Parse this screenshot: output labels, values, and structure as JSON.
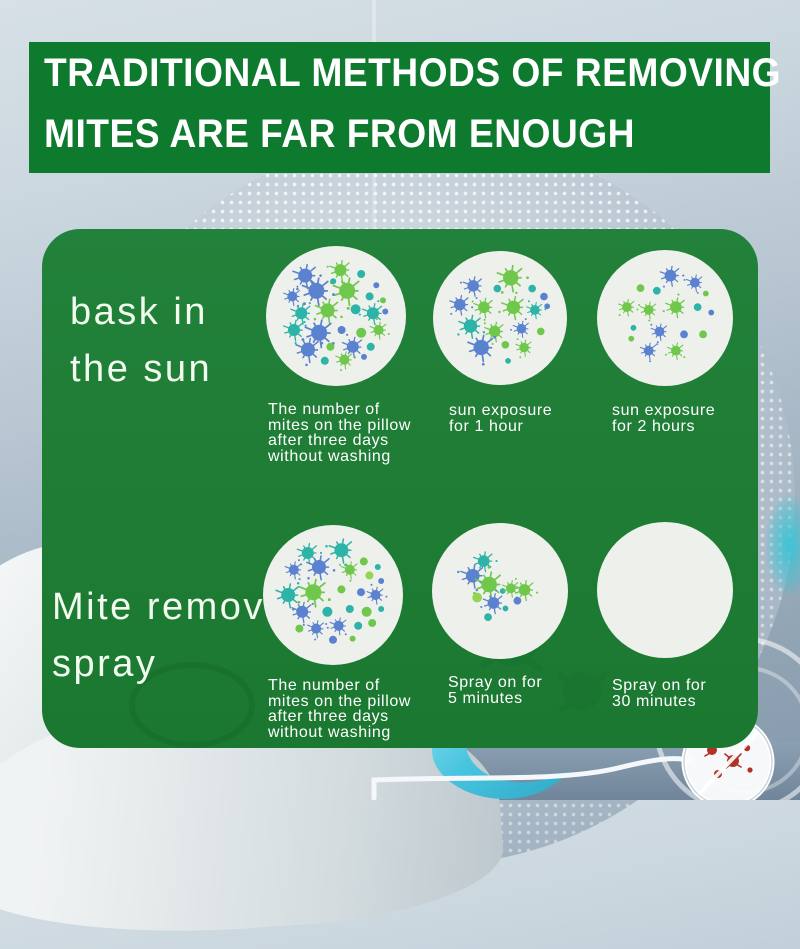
{
  "banner": {
    "line1": "TRADITIONAL METHODS OF REMOVING",
    "line2": "MITES ARE FAR FROM ENOUGH"
  },
  "colors": {
    "banner_bg": "#0d7a2e",
    "panel_bg_top": "#22813a",
    "panel_bg_bottom": "#1b7830",
    "headline_text": "#ffffff",
    "label_text": "#f1fbee",
    "caption_text": "#ffffff",
    "dish_fill": "#eef0ec",
    "red_mite": "#b03228",
    "ribbon_cyan": "#45c3de",
    "mites": {
      "b": "#5b82cf",
      "g": "#6fc84c",
      "t": "#2db3a8",
      "l": "#93d455"
    }
  },
  "rows": [
    {
      "label_lines": [
        "bask in",
        "the sun"
      ],
      "items": [
        {
          "caption_lines": [
            "The number of",
            "mites on the pillow",
            "after three days",
            "without washing"
          ],
          "mite_count": 27,
          "mites": [
            [
              -0.55,
              -0.72,
              7,
              "b",
              1
            ],
            [
              0.08,
              -0.82,
              6,
              "g",
              1
            ],
            [
              0.45,
              -0.75,
              4,
              "t",
              0
            ],
            [
              0.72,
              -0.55,
              3,
              "b",
              0
            ],
            [
              -0.78,
              -0.35,
              5,
              "b",
              1
            ],
            [
              -0.35,
              -0.45,
              8,
              "b",
              1
            ],
            [
              0.2,
              -0.45,
              8,
              "g",
              1
            ],
            [
              0.6,
              -0.35,
              4,
              "t",
              0
            ],
            [
              0.84,
              -0.28,
              3,
              "g",
              0
            ],
            [
              -0.62,
              -0.05,
              6,
              "t",
              1
            ],
            [
              -0.15,
              -0.1,
              7,
              "g",
              1
            ],
            [
              0.35,
              -0.12,
              5,
              "t",
              0
            ],
            [
              0.66,
              -0.05,
              6,
              "t",
              1
            ],
            [
              0.88,
              -0.08,
              3,
              "b",
              0
            ],
            [
              -0.75,
              0.25,
              6,
              "t",
              1
            ],
            [
              -0.3,
              0.3,
              8,
              "b",
              1
            ],
            [
              0.1,
              0.25,
              4,
              "b",
              0
            ],
            [
              0.45,
              0.3,
              5,
              "g",
              0
            ],
            [
              0.76,
              0.25,
              5,
              "g",
              1
            ],
            [
              -0.5,
              0.6,
              7,
              "b",
              1
            ],
            [
              -0.1,
              0.55,
              4,
              "g",
              0
            ],
            [
              0.3,
              0.55,
              6,
              "b",
              1
            ],
            [
              0.62,
              0.55,
              4,
              "t",
              0
            ],
            [
              -0.2,
              0.8,
              4,
              "t",
              0
            ],
            [
              0.15,
              0.78,
              5,
              "g",
              1
            ],
            [
              0.5,
              0.73,
              3,
              "b",
              0
            ],
            [
              -0.05,
              -0.62,
              3,
              "t",
              0
            ]
          ]
        },
        {
          "caption_lines": [
            "sun exposure",
            "for 1 hour"
          ],
          "mite_count": 18,
          "mites": [
            [
              0.2,
              -0.75,
              8,
              "g",
              1
            ],
            [
              -0.5,
              -0.6,
              6,
              "b",
              1
            ],
            [
              -0.05,
              -0.55,
              4,
              "t",
              0
            ],
            [
              0.6,
              -0.55,
              4,
              "t",
              0
            ],
            [
              0.82,
              -0.4,
              4,
              "b",
              0
            ],
            [
              -0.75,
              -0.25,
              6,
              "b",
              1
            ],
            [
              -0.3,
              -0.2,
              6,
              "g",
              1
            ],
            [
              0.25,
              -0.2,
              7,
              "g",
              1
            ],
            [
              0.65,
              -0.15,
              5,
              "t",
              1
            ],
            [
              0.88,
              -0.22,
              3,
              "b",
              0
            ],
            [
              -0.55,
              0.15,
              7,
              "t",
              1
            ],
            [
              -0.1,
              0.25,
              6,
              "g",
              1
            ],
            [
              0.4,
              0.2,
              5,
              "b",
              1
            ],
            [
              0.76,
              0.25,
              4,
              "g",
              0
            ],
            [
              -0.35,
              0.55,
              8,
              "b",
              1
            ],
            [
              0.1,
              0.5,
              4,
              "g",
              0
            ],
            [
              0.45,
              0.55,
              5,
              "g",
              1
            ],
            [
              0.15,
              0.8,
              3,
              "t",
              0
            ]
          ]
        },
        {
          "caption_lines": [
            "sun exposure",
            "for 2 hours"
          ],
          "mite_count": 17,
          "mites": [
            [
              0.1,
              -0.78,
              6,
              "b",
              1
            ],
            [
              0.55,
              -0.65,
              5,
              "b",
              1
            ],
            [
              -0.45,
              -0.55,
              4,
              "g",
              0
            ],
            [
              -0.15,
              -0.5,
              4,
              "t",
              0
            ],
            [
              0.75,
              -0.45,
              3,
              "g",
              0
            ],
            [
              -0.7,
              -0.2,
              5,
              "g",
              1
            ],
            [
              -0.3,
              -0.15,
              5,
              "g",
              1
            ],
            [
              0.2,
              -0.2,
              6,
              "g",
              1
            ],
            [
              0.6,
              -0.2,
              4,
              "t",
              0
            ],
            [
              0.85,
              -0.1,
              3,
              "b",
              0
            ],
            [
              -0.58,
              0.18,
              3,
              "t",
              0
            ],
            [
              -0.1,
              0.25,
              5,
              "b",
              1
            ],
            [
              0.35,
              0.3,
              4,
              "b",
              0
            ],
            [
              0.7,
              0.3,
              4,
              "g",
              0
            ],
            [
              -0.3,
              0.6,
              5,
              "b",
              1
            ],
            [
              0.2,
              0.6,
              5,
              "g",
              1
            ],
            [
              -0.62,
              0.38,
              3,
              "g",
              0
            ]
          ]
        }
      ]
    },
    {
      "label_lines": [
        "Mite removal",
        "spray"
      ],
      "items": [
        {
          "caption_lines": [
            "The number of",
            "mites on the pillow",
            "after three days",
            "without washing"
          ],
          "mite_count": 26,
          "mites": [
            [
              -0.45,
              -0.75,
              6,
              "t",
              1
            ],
            [
              0.15,
              -0.8,
              7,
              "t",
              1
            ],
            [
              0.55,
              -0.6,
              4,
              "g",
              0
            ],
            [
              0.8,
              -0.5,
              3,
              "t",
              0
            ],
            [
              -0.7,
              -0.45,
              5,
              "b",
              1
            ],
            [
              -0.25,
              -0.5,
              7,
              "b",
              1
            ],
            [
              0.3,
              -0.45,
              5,
              "g",
              1
            ],
            [
              0.65,
              -0.35,
              4,
              "l",
              0
            ],
            [
              0.86,
              -0.25,
              3,
              "b",
              0
            ],
            [
              -0.8,
              0,
              7,
              "t",
              1
            ],
            [
              -0.35,
              -0.05,
              8,
              "g",
              1
            ],
            [
              0.15,
              -0.1,
              4,
              "g",
              0
            ],
            [
              0.5,
              -0.05,
              4,
              "b",
              0
            ],
            [
              0.76,
              0,
              5,
              "b",
              1
            ],
            [
              -0.55,
              0.3,
              6,
              "b",
              1
            ],
            [
              -0.1,
              0.3,
              5,
              "t",
              0
            ],
            [
              0.3,
              0.25,
              4,
              "t",
              0
            ],
            [
              0.6,
              0.3,
              5,
              "g",
              0
            ],
            [
              0.86,
              0.25,
              3,
              "t",
              0
            ],
            [
              -0.3,
              0.6,
              5,
              "b",
              1
            ],
            [
              0.1,
              0.55,
              5,
              "b",
              1
            ],
            [
              0.45,
              0.55,
              4,
              "t",
              0
            ],
            [
              0.7,
              0.5,
              4,
              "g",
              0
            ],
            [
              0,
              0.8,
              4,
              "b",
              0
            ],
            [
              0.35,
              0.78,
              3,
              "g",
              0
            ],
            [
              -0.6,
              0.6,
              4,
              "g",
              0
            ]
          ]
        },
        {
          "caption_lines": [
            "Spray on for",
            "5 minutes"
          ],
          "mite_count": 11,
          "mites": [
            [
              -0.3,
              -0.55,
              6,
              "t",
              1
            ],
            [
              -0.5,
              -0.28,
              7,
              "b",
              1
            ],
            [
              -0.2,
              -0.12,
              8,
              "g",
              1
            ],
            [
              0.05,
              0,
              3,
              "t",
              0
            ],
            [
              0.2,
              -0.05,
              5,
              "g",
              1
            ],
            [
              0.45,
              -0.02,
              6,
              "g",
              1
            ],
            [
              -0.42,
              0.12,
              5,
              "l",
              0
            ],
            [
              -0.12,
              0.22,
              6,
              "b",
              1
            ],
            [
              0.32,
              0.18,
              4,
              "b",
              0
            ],
            [
              0.1,
              0.32,
              3,
              "t",
              0
            ],
            [
              -0.22,
              0.48,
              4,
              "t",
              0
            ]
          ]
        },
        {
          "caption_lines": [
            "Spray on for",
            "30 minutes"
          ],
          "mite_count": 0,
          "mites": []
        }
      ]
    }
  ]
}
